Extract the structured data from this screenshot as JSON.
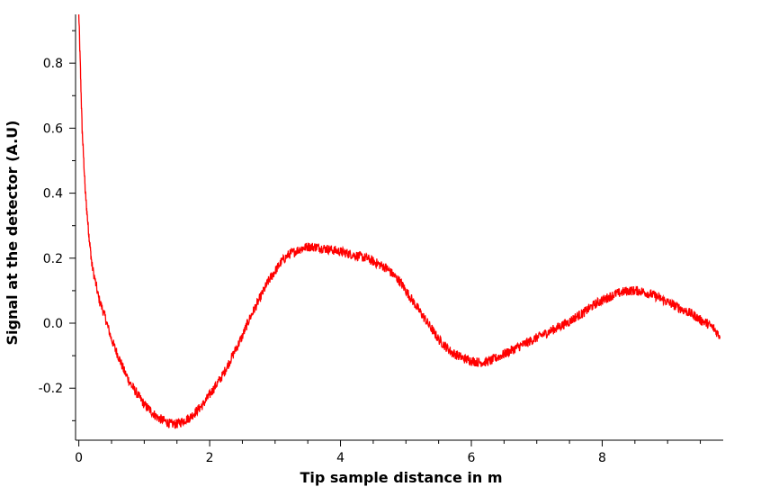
{
  "chart_data": {
    "type": "line",
    "title": "",
    "xlabel": "Tip sample distance in m",
    "ylabel": "Signal at the detector (A.U)",
    "xlim": [
      -0.05,
      9.85
    ],
    "ylim": [
      -0.36,
      0.95
    ],
    "x_ticks": [
      0,
      2,
      4,
      6,
      8
    ],
    "y_ticks": [
      -0.2,
      0.0,
      0.2,
      0.4,
      0.6,
      0.8
    ],
    "x_tick_labels": [
      "0",
      "2",
      "4",
      "6",
      "8"
    ],
    "y_tick_labels": [
      "-0.2",
      "0.0",
      "0.2",
      "0.4",
      "0.6",
      "0.8"
    ],
    "grid": false,
    "line_color": "#ff0000",
    "series": [
      {
        "x": [
          0.0,
          0.05,
          0.1,
          0.15,
          0.2,
          0.3,
          0.4,
          0.5,
          0.6,
          0.7,
          0.8,
          0.9,
          1.0,
          1.1,
          1.2,
          1.3,
          1.4,
          1.5,
          1.6,
          1.7,
          1.8,
          1.9,
          2.0,
          2.1,
          2.2,
          2.3,
          2.4,
          2.5,
          2.6,
          2.7,
          2.8,
          2.9,
          3.0,
          3.1,
          3.2,
          3.3,
          3.4,
          3.5,
          3.6,
          3.7,
          3.8,
          3.9,
          4.0,
          4.1,
          4.2,
          4.3,
          4.4,
          4.5,
          4.6,
          4.7,
          4.8,
          4.9,
          5.0,
          5.1,
          5.2,
          5.3,
          5.4,
          5.5,
          5.6,
          5.7,
          5.8,
          5.9,
          6.0,
          6.1,
          6.2,
          6.3,
          6.4,
          6.5,
          6.6,
          6.7,
          6.8,
          6.9,
          7.0,
          7.1,
          7.2,
          7.3,
          7.4,
          7.5,
          7.6,
          7.7,
          7.8,
          7.9,
          8.0,
          8.1,
          8.2,
          8.3,
          8.4,
          8.5,
          8.6,
          8.7,
          8.8,
          8.9,
          9.0,
          9.1,
          9.2,
          9.3,
          9.4,
          9.5,
          9.6,
          9.7,
          9.8
        ],
        "y": [
          0.95,
          0.6,
          0.4,
          0.28,
          0.18,
          0.08,
          0.02,
          -0.05,
          -0.1,
          -0.15,
          -0.19,
          -0.22,
          -0.25,
          -0.27,
          -0.29,
          -0.3,
          -0.31,
          -0.31,
          -0.3,
          -0.29,
          -0.27,
          -0.25,
          -0.22,
          -0.19,
          -0.16,
          -0.12,
          -0.08,
          -0.04,
          0.01,
          0.05,
          0.09,
          0.13,
          0.16,
          0.19,
          0.21,
          0.22,
          0.23,
          0.235,
          0.235,
          0.232,
          0.228,
          0.224,
          0.22,
          0.215,
          0.21,
          0.205,
          0.2,
          0.19,
          0.18,
          0.17,
          0.15,
          0.13,
          0.1,
          0.07,
          0.04,
          0.01,
          -0.02,
          -0.05,
          -0.07,
          -0.09,
          -0.1,
          -0.11,
          -0.115,
          -0.12,
          -0.12,
          -0.115,
          -0.105,
          -0.095,
          -0.085,
          -0.075,
          -0.065,
          -0.055,
          -0.045,
          -0.035,
          -0.025,
          -0.015,
          -0.005,
          0.005,
          0.02,
          0.03,
          0.045,
          0.06,
          0.07,
          0.08,
          0.09,
          0.095,
          0.1,
          0.1,
          0.098,
          0.092,
          0.085,
          0.075,
          0.065,
          0.055,
          0.045,
          0.035,
          0.025,
          0.01,
          0.0,
          -0.015,
          -0.04
        ]
      }
    ]
  }
}
